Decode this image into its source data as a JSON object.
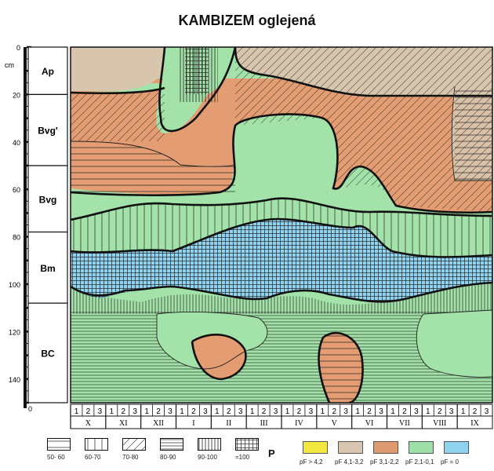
{
  "title": "KAMBIZEM oglejená",
  "depth_axis": {
    "unit": "cm",
    "ticks": [
      "0",
      "20",
      "40",
      "60",
      "80",
      "100",
      "120",
      "140"
    ],
    "bottom_label": "0"
  },
  "horizons": [
    {
      "label": "Ap",
      "top_cm": 0,
      "bottom_cm": 20
    },
    {
      "label": "Bvg'",
      "top_cm": 20,
      "bottom_cm": 50
    },
    {
      "label": "Bvg",
      "top_cm": 50,
      "bottom_cm": 78
    },
    {
      "label": "Bm",
      "top_cm": 78,
      "bottom_cm": 108
    },
    {
      "label": "BC",
      "top_cm": 108,
      "bottom_cm": 150
    }
  ],
  "month_decades": [
    "1",
    "2",
    "3"
  ],
  "months": [
    "X",
    "XI",
    "XII",
    "I",
    "II",
    "III",
    "IV",
    "V",
    "VI",
    "VII",
    "VIII",
    "IX"
  ],
  "pattern_legend": [
    {
      "label": "50- 60",
      "pattern": "h-wide"
    },
    {
      "label": "60-70",
      "pattern": "v-wide"
    },
    {
      "label": "70-80",
      "pattern": "diag"
    },
    {
      "label": "80-90",
      "pattern": "h-dense"
    },
    {
      "label": "90-100",
      "pattern": "v-dense"
    },
    {
      "label": "=100",
      "pattern": "grid"
    }
  ],
  "pattern_legend_symbol": "P",
  "color_legend": [
    {
      "label": "pF > 4,2",
      "color": "#f3e83f"
    },
    {
      "label": "pF 4,1-3,2",
      "color": "#d9c6b0"
    },
    {
      "label": "pF 3,1-2,2",
      "color": "#e09a72"
    },
    {
      "label": "pF 2,1-0,1",
      "color": "#9fe0a8"
    },
    {
      "label": "pF = 0",
      "color": "#8fd3ef"
    }
  ]
}
